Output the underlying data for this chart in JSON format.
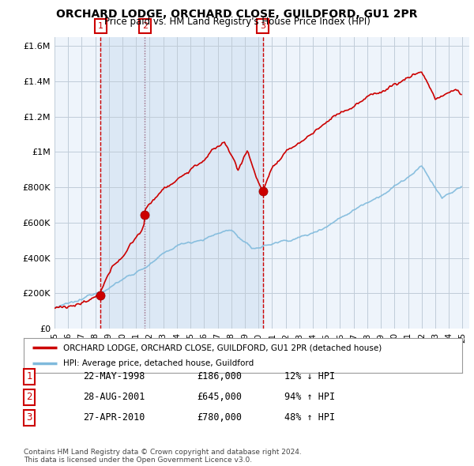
{
  "title": "ORCHARD LODGE, ORCHARD CLOSE, GUILDFORD, GU1 2PR",
  "subtitle": "Price paid vs. HM Land Registry's House Price Index (HPI)",
  "ylim": [
    0,
    1650000
  ],
  "yticks": [
    0,
    200000,
    400000,
    600000,
    800000,
    1000000,
    1200000,
    1400000,
    1600000
  ],
  "ytick_labels": [
    "£0",
    "£200K",
    "£400K",
    "£600K",
    "£800K",
    "£1M",
    "£1.2M",
    "£1.4M",
    "£1.6M"
  ],
  "xlim": [
    1995,
    2025.5
  ],
  "sale_color": "#cc0000",
  "hpi_color": "#7fbadc",
  "shade_color": "#ddeeff",
  "sale_points": [
    {
      "year": 1998.38,
      "price": 186000,
      "label": "1"
    },
    {
      "year": 2001.65,
      "price": 645000,
      "label": "2"
    },
    {
      "year": 2010.32,
      "price": 780000,
      "label": "3"
    }
  ],
  "legend_sale_label": "ORCHARD LODGE, ORCHARD CLOSE, GUILDFORD, GU1 2PR (detached house)",
  "legend_hpi_label": "HPI: Average price, detached house, Guildford",
  "table_rows": [
    {
      "num": "1",
      "date": "22-MAY-1998",
      "price": "£186,000",
      "change": "12% ↓ HPI"
    },
    {
      "num": "2",
      "date": "28-AUG-2001",
      "price": "£645,000",
      "change": "94% ↑ HPI"
    },
    {
      "num": "3",
      "date": "27-APR-2010",
      "price": "£780,000",
      "change": "48% ↑ HPI"
    }
  ],
  "footer": "Contains HM Land Registry data © Crown copyright and database right 2024.\nThis data is licensed under the Open Government Licence v3.0.",
  "background_color": "#ffffff",
  "grid_color": "#cccccc",
  "vline_color": "#cc0000",
  "vline2_color": "#8888bb"
}
